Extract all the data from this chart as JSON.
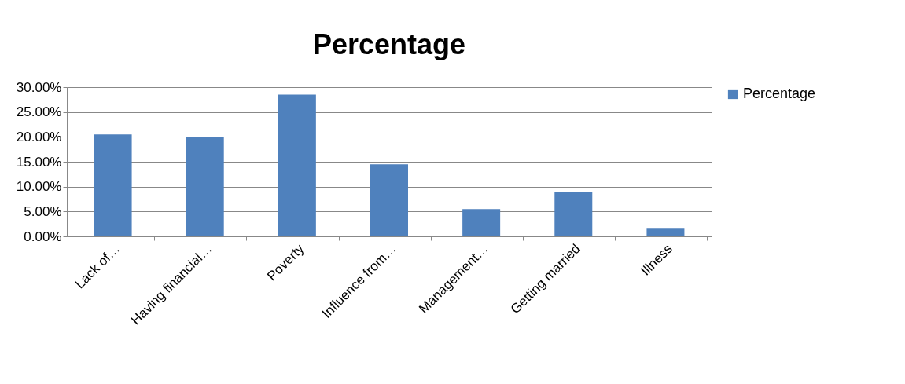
{
  "chart_data": {
    "type": "bar",
    "title": "Percentage",
    "categories": [
      "Lack of…",
      "Having financial…",
      "Poverty",
      "Influence from…",
      "Management…",
      "Getting married",
      "Illness"
    ],
    "series": [
      {
        "name": "Percentage",
        "color": "#4f81bd",
        "values": [
          20.5,
          20.0,
          28.5,
          14.5,
          5.5,
          9.0,
          1.7
        ]
      }
    ],
    "ylim": [
      0,
      30
    ],
    "yticks": [
      {
        "value": 0,
        "label": "0.00%"
      },
      {
        "value": 5,
        "label": "5.00%"
      },
      {
        "value": 10,
        "label": "10.00%"
      },
      {
        "value": 15,
        "label": "15.00%"
      },
      {
        "value": 20,
        "label": "20.00%"
      },
      {
        "value": 25,
        "label": "25.00%"
      },
      {
        "value": 30,
        "label": "30.00%"
      }
    ],
    "grid": "y",
    "legend": "right"
  }
}
